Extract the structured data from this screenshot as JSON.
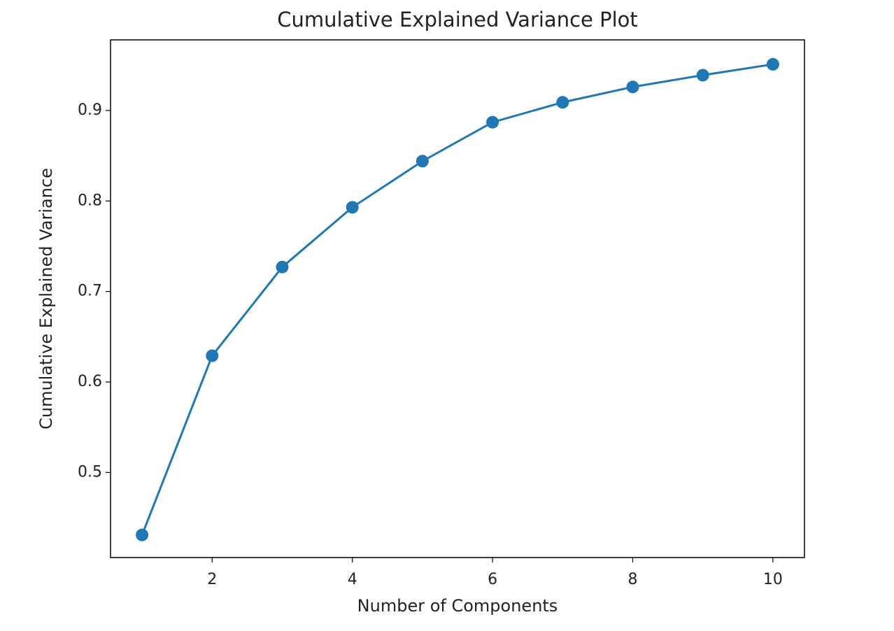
{
  "chart_data": {
    "type": "line",
    "title": "Cumulative Explained Variance Plot",
    "x_label": "Number of Components",
    "y_label": "Cumulative Explained Variance",
    "x": [
      1,
      2,
      3,
      4,
      5,
      6,
      7,
      8,
      9,
      10
    ],
    "series": [
      {
        "color": "#1f77b4",
        "values": [
          0.431,
          0.629,
          0.727,
          0.793,
          0.844,
          0.887,
          0.909,
          0.926,
          0.939,
          0.951
        ]
      }
    ],
    "xlim": [
      0.55,
      10.45
    ],
    "xticks": [
      2,
      4,
      6,
      8,
      10
    ],
    "ylim": [
      0.406,
      0.978
    ],
    "yticks": [
      0.5,
      0.6,
      0.7,
      0.8,
      0.9
    ],
    "grid": false,
    "markers": true
  }
}
